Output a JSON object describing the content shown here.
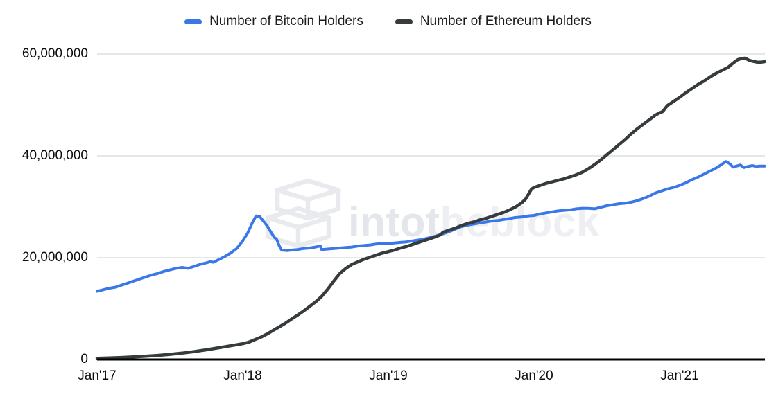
{
  "legend": {
    "items": [
      {
        "label": "Number of Bitcoin Holders",
        "color": "#3a78e7"
      },
      {
        "label": "Number of Ethereum Holders",
        "color": "#363b3e"
      }
    ]
  },
  "watermark": {
    "text": "intotheblock",
    "part1": "intot",
    "part2": "heblock",
    "logo": "intotheblock-cubes-logo",
    "color1": "#e3e6ea",
    "color2": "#edeff2"
  },
  "chart_data": {
    "type": "line",
    "title": "",
    "grid": true,
    "legend_position": "top",
    "background": "#ffffff",
    "gridline_color": "#d6d6d6",
    "axis_line_color": "#000000",
    "units": "holders, values in millions; x = months since Jan 2017",
    "x_axis": {
      "tick_labels": [
        "Jan'17",
        "Jan'18",
        "Jan'19",
        "Jan'20",
        "Jan'21"
      ],
      "tick_months": [
        0,
        12,
        24,
        36,
        48
      ],
      "range_months": [
        0,
        55
      ]
    },
    "y_axis": {
      "tick_labels": [
        "60,000,000",
        "40,000,000",
        "20,000,000",
        "0"
      ],
      "tick_values_millions": [
        60,
        40,
        20,
        0
      ],
      "ylim_millions": [
        0,
        60
      ]
    },
    "series": [
      {
        "name": "Number of Bitcoin Holders",
        "color": "#3a78e7",
        "stroke_width": 4,
        "points": [
          [
            0,
            13.4
          ],
          [
            0.5,
            13.7
          ],
          [
            1,
            14.0
          ],
          [
            1.5,
            14.2
          ],
          [
            2,
            14.6
          ],
          [
            2.5,
            15.0
          ],
          [
            3,
            15.4
          ],
          [
            3.5,
            15.8
          ],
          [
            4,
            16.2
          ],
          [
            4.5,
            16.6
          ],
          [
            5,
            16.9
          ],
          [
            5.5,
            17.3
          ],
          [
            6,
            17.6
          ],
          [
            6.5,
            17.9
          ],
          [
            7,
            18.1
          ],
          [
            7.5,
            17.9
          ],
          [
            8,
            18.3
          ],
          [
            8.5,
            18.7
          ],
          [
            9,
            19.0
          ],
          [
            9.3,
            19.2
          ],
          [
            9.6,
            19.1
          ],
          [
            10,
            19.6
          ],
          [
            10.5,
            20.2
          ],
          [
            11,
            20.9
          ],
          [
            11.5,
            21.8
          ],
          [
            12,
            23.3
          ],
          [
            12.4,
            24.8
          ],
          [
            12.8,
            26.9
          ],
          [
            13.1,
            28.2
          ],
          [
            13.4,
            28.1
          ],
          [
            13.7,
            27.2
          ],
          [
            14,
            26.3
          ],
          [
            14.3,
            25.1
          ],
          [
            14.6,
            24.0
          ],
          [
            14.8,
            23.6
          ],
          [
            15,
            22.4
          ],
          [
            15.2,
            21.5
          ],
          [
            15.7,
            21.4
          ],
          [
            16,
            21.5
          ],
          [
            16.5,
            21.6
          ],
          [
            17,
            21.8
          ],
          [
            17.5,
            21.9
          ],
          [
            18,
            22.1
          ],
          [
            18.4,
            22.3
          ],
          [
            18.5,
            21.6
          ],
          [
            19,
            21.7
          ],
          [
            19.5,
            21.8
          ],
          [
            20,
            21.9
          ],
          [
            20.5,
            22.0
          ],
          [
            21,
            22.1
          ],
          [
            21.5,
            22.3
          ],
          [
            22,
            22.4
          ],
          [
            22.5,
            22.5
          ],
          [
            23,
            22.7
          ],
          [
            23.5,
            22.8
          ],
          [
            24,
            22.8
          ],
          [
            24.5,
            22.9
          ],
          [
            25,
            23.0
          ],
          [
            25.5,
            23.1
          ],
          [
            26,
            23.3
          ],
          [
            26.5,
            23.5
          ],
          [
            27,
            23.7
          ],
          [
            27.5,
            24.0
          ],
          [
            28,
            24.3
          ],
          [
            28.5,
            24.7
          ],
          [
            29,
            25.1
          ],
          [
            29.5,
            25.6
          ],
          [
            30,
            26.1
          ],
          [
            30.5,
            26.4
          ],
          [
            31,
            26.6
          ],
          [
            31.5,
            26.8
          ],
          [
            32,
            27.0
          ],
          [
            32.5,
            27.2
          ],
          [
            33,
            27.3
          ],
          [
            33.5,
            27.5
          ],
          [
            34,
            27.7
          ],
          [
            34.5,
            27.9
          ],
          [
            35,
            28.0
          ],
          [
            35.5,
            28.2
          ],
          [
            36,
            28.3
          ],
          [
            36.5,
            28.6
          ],
          [
            37,
            28.8
          ],
          [
            37.5,
            29.0
          ],
          [
            38,
            29.2
          ],
          [
            38.5,
            29.3
          ],
          [
            39,
            29.4
          ],
          [
            39.5,
            29.6
          ],
          [
            40,
            29.7
          ],
          [
            40.5,
            29.7
          ],
          [
            41,
            29.6
          ],
          [
            41.5,
            29.9
          ],
          [
            42,
            30.2
          ],
          [
            42.5,
            30.4
          ],
          [
            43,
            30.6
          ],
          [
            43.5,
            30.7
          ],
          [
            44,
            30.9
          ],
          [
            44.5,
            31.2
          ],
          [
            45,
            31.6
          ],
          [
            45.5,
            32.1
          ],
          [
            46,
            32.7
          ],
          [
            46.5,
            33.1
          ],
          [
            47,
            33.5
          ],
          [
            47.5,
            33.8
          ],
          [
            48,
            34.2
          ],
          [
            48.5,
            34.7
          ],
          [
            49,
            35.3
          ],
          [
            49.5,
            35.8
          ],
          [
            50,
            36.4
          ],
          [
            50.5,
            37.0
          ],
          [
            51,
            37.6
          ],
          [
            51.4,
            38.2
          ],
          [
            51.8,
            38.9
          ],
          [
            52.1,
            38.5
          ],
          [
            52.4,
            37.8
          ],
          [
            52.7,
            38.0
          ],
          [
            53,
            38.2
          ],
          [
            53.3,
            37.7
          ],
          [
            53.6,
            37.9
          ],
          [
            54,
            38.1
          ],
          [
            54.3,
            37.9
          ],
          [
            54.6,
            38.0
          ],
          [
            55,
            38.0
          ]
        ]
      },
      {
        "name": "Number of Ethereum Holders",
        "color": "#363b3e",
        "stroke_width": 4.5,
        "points": [
          [
            0,
            0.25
          ],
          [
            1,
            0.3
          ],
          [
            2,
            0.4
          ],
          [
            3,
            0.5
          ],
          [
            4,
            0.65
          ],
          [
            5,
            0.8
          ],
          [
            6,
            1.0
          ],
          [
            7,
            1.25
          ],
          [
            8,
            1.55
          ],
          [
            9,
            1.9
          ],
          [
            10,
            2.3
          ],
          [
            11,
            2.7
          ],
          [
            12,
            3.1
          ],
          [
            12.5,
            3.4
          ],
          [
            13,
            3.9
          ],
          [
            13.5,
            4.4
          ],
          [
            14,
            5.0
          ],
          [
            14.5,
            5.7
          ],
          [
            15,
            6.4
          ],
          [
            15.5,
            7.1
          ],
          [
            16,
            7.9
          ],
          [
            16.5,
            8.7
          ],
          [
            17,
            9.5
          ],
          [
            17.5,
            10.4
          ],
          [
            18,
            11.3
          ],
          [
            18.5,
            12.4
          ],
          [
            19,
            13.8
          ],
          [
            19.5,
            15.4
          ],
          [
            20,
            16.9
          ],
          [
            20.5,
            17.9
          ],
          [
            21,
            18.7
          ],
          [
            21.5,
            19.2
          ],
          [
            22,
            19.7
          ],
          [
            22.5,
            20.1
          ],
          [
            23,
            20.5
          ],
          [
            23.5,
            20.9
          ],
          [
            24,
            21.2
          ],
          [
            24.5,
            21.5
          ],
          [
            25,
            21.9
          ],
          [
            25.5,
            22.2
          ],
          [
            26,
            22.6
          ],
          [
            26.5,
            23.0
          ],
          [
            27,
            23.4
          ],
          [
            27.5,
            23.8
          ],
          [
            28,
            24.2
          ],
          [
            28.3,
            24.5
          ],
          [
            28.5,
            25.0
          ],
          [
            29,
            25.4
          ],
          [
            29.5,
            25.8
          ],
          [
            30,
            26.3
          ],
          [
            30.5,
            26.7
          ],
          [
            31,
            27.0
          ],
          [
            31.5,
            27.4
          ],
          [
            32,
            27.7
          ],
          [
            32.5,
            28.1
          ],
          [
            33,
            28.5
          ],
          [
            33.5,
            28.9
          ],
          [
            34,
            29.4
          ],
          [
            34.5,
            30.0
          ],
          [
            35,
            30.8
          ],
          [
            35.3,
            31.5
          ],
          [
            35.5,
            32.3
          ],
          [
            35.8,
            33.5
          ],
          [
            36,
            33.8
          ],
          [
            36.5,
            34.2
          ],
          [
            37,
            34.6
          ],
          [
            37.5,
            34.9
          ],
          [
            38,
            35.2
          ],
          [
            38.5,
            35.5
          ],
          [
            39,
            35.9
          ],
          [
            39.5,
            36.3
          ],
          [
            40,
            36.8
          ],
          [
            40.5,
            37.5
          ],
          [
            41,
            38.3
          ],
          [
            41.5,
            39.2
          ],
          [
            42,
            40.2
          ],
          [
            42.5,
            41.2
          ],
          [
            43,
            42.2
          ],
          [
            43.5,
            43.2
          ],
          [
            44,
            44.3
          ],
          [
            44.5,
            45.3
          ],
          [
            45,
            46.2
          ],
          [
            45.5,
            47.1
          ],
          [
            46,
            48.0
          ],
          [
            46.3,
            48.4
          ],
          [
            46.6,
            48.7
          ],
          [
            47,
            49.9
          ],
          [
            47.5,
            50.7
          ],
          [
            48,
            51.5
          ],
          [
            48.5,
            52.4
          ],
          [
            49,
            53.2
          ],
          [
            49.5,
            54.0
          ],
          [
            50,
            54.7
          ],
          [
            50.5,
            55.5
          ],
          [
            51,
            56.2
          ],
          [
            51.5,
            56.8
          ],
          [
            52,
            57.4
          ],
          [
            52.4,
            58.2
          ],
          [
            52.8,
            58.9
          ],
          [
            53.1,
            59.1
          ],
          [
            53.4,
            59.2
          ],
          [
            53.7,
            58.8
          ],
          [
            54,
            58.6
          ],
          [
            54.4,
            58.4
          ],
          [
            54.7,
            58.4
          ],
          [
            55,
            58.5
          ]
        ]
      }
    ]
  }
}
